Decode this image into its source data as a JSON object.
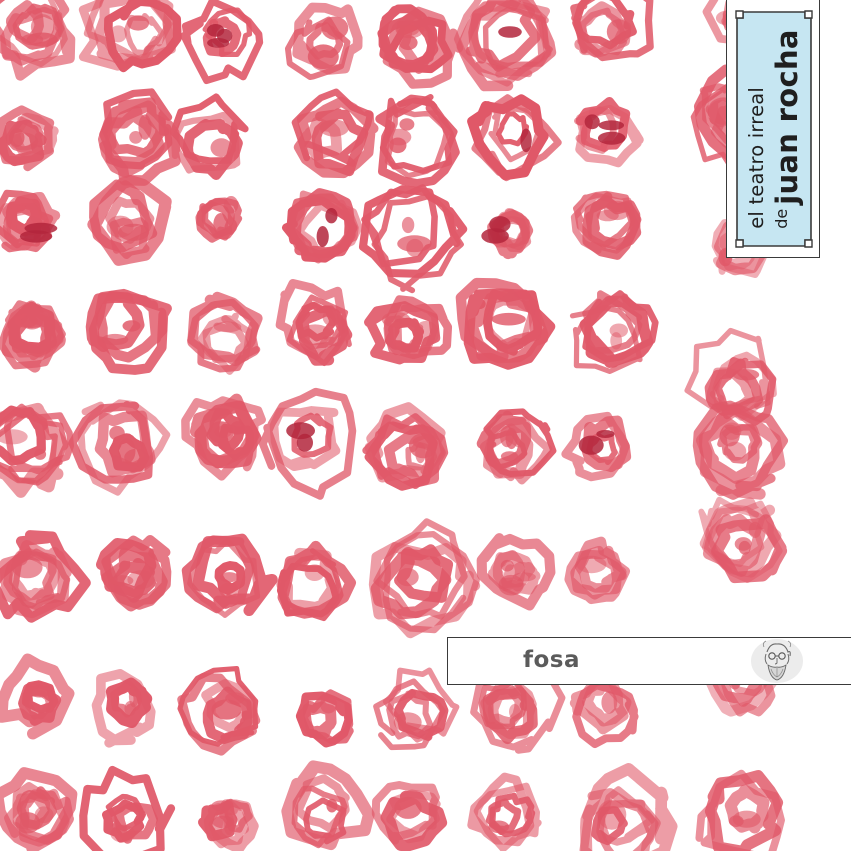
{
  "cover": {
    "colors": {
      "background": "#ffffff",
      "ink": "#e05868",
      "ink_dark": "#b3263c",
      "plate_fill": "#c6e6f2",
      "frame": "#3a3a3a",
      "title_text": "#5b5b5b"
    },
    "brand": {
      "line1": "el teatro irreal",
      "line2_prefix": "de",
      "line2_name": "juan rocha"
    },
    "title": "fosa",
    "emblem_icon": "bearded-face-portrait-icon",
    "artwork": "red-ink-scribble-grid"
  }
}
